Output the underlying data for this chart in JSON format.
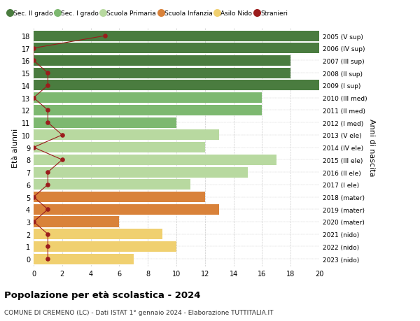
{
  "ages": [
    18,
    17,
    16,
    15,
    14,
    13,
    12,
    11,
    10,
    9,
    8,
    7,
    6,
    5,
    4,
    3,
    2,
    1,
    0
  ],
  "right_labels": [
    "2005 (V sup)",
    "2006 (IV sup)",
    "2007 (III sup)",
    "2008 (II sup)",
    "2009 (I sup)",
    "2010 (III med)",
    "2011 (II med)",
    "2012 (I med)",
    "2013 (V ele)",
    "2014 (IV ele)",
    "2015 (III ele)",
    "2016 (II ele)",
    "2017 (I ele)",
    "2018 (mater)",
    "2019 (mater)",
    "2020 (mater)",
    "2021 (nido)",
    "2022 (nido)",
    "2023 (nido)"
  ],
  "bar_values": [
    20,
    20,
    18,
    18,
    20,
    16,
    16,
    10,
    13,
    12,
    17,
    15,
    11,
    12,
    13,
    6,
    9,
    10,
    7
  ],
  "stranieri": [
    5,
    0,
    0,
    1,
    1,
    0,
    1,
    1,
    2,
    0,
    2,
    1,
    1,
    0,
    1,
    0,
    1,
    1,
    1
  ],
  "bar_colors": [
    "#4a7c3f",
    "#4a7c3f",
    "#4a7c3f",
    "#4a7c3f",
    "#4a7c3f",
    "#7db870",
    "#7db870",
    "#7db870",
    "#b8d9a0",
    "#b8d9a0",
    "#b8d9a0",
    "#b8d9a0",
    "#b8d9a0",
    "#d9823a",
    "#d9823a",
    "#d9823a",
    "#f0d070",
    "#f0d070",
    "#f0d070"
  ],
  "legend_labels": [
    "Sec. II grado",
    "Sec. I grado",
    "Scuola Primaria",
    "Scuola Infanzia",
    "Asilo Nido",
    "Stranieri"
  ],
  "legend_colors": [
    "#4a7c3f",
    "#7db870",
    "#b8d9a0",
    "#d9823a",
    "#f0d070",
    "#c0392b"
  ],
  "stranieri_color": "#9b1c1c",
  "title": "Popolazione per età scolastica - 2024",
  "subtitle": "COMUNE DI CREMENO (LC) - Dati ISTAT 1° gennaio 2024 - Elaborazione TUTTITALIA.IT",
  "ylabel_left": "Età alunni",
  "ylabel_right": "Anni di nascita",
  "xlim": [
    0,
    20
  ],
  "bar_height": 0.85,
  "background_color": "#ffffff",
  "grid_color": "#cccccc"
}
